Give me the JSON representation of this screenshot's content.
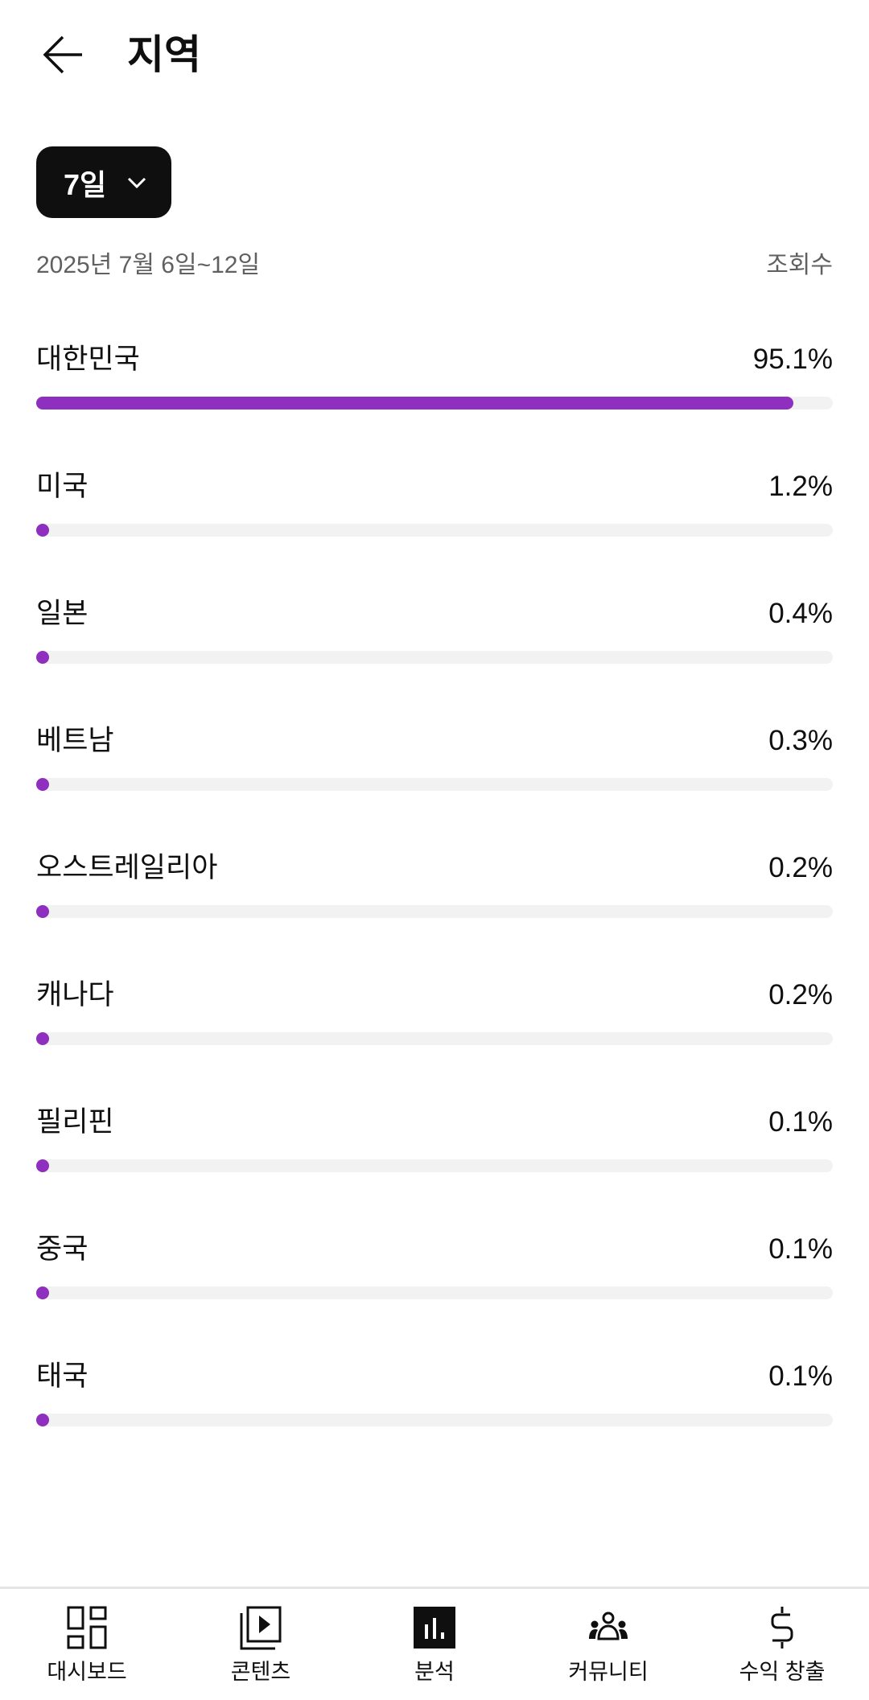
{
  "header": {
    "title": "지역",
    "back_icon": "arrow-left-icon"
  },
  "filter": {
    "period": "7일",
    "icon": "chevron-down-icon"
  },
  "date_range": "2025년 7월 6일~12일",
  "metric_label": "조회수",
  "accent_color": "#8e2fbf",
  "regions": [
    {
      "name": "대한민국",
      "percent_label": "95.1%",
      "value": 95.1
    },
    {
      "name": "미국",
      "percent_label": "1.2%",
      "value": 1.2
    },
    {
      "name": "일본",
      "percent_label": "0.4%",
      "value": 0.4
    },
    {
      "name": "베트남",
      "percent_label": "0.3%",
      "value": 0.3
    },
    {
      "name": "오스트레일리아",
      "percent_label": "0.2%",
      "value": 0.2
    },
    {
      "name": "캐나다",
      "percent_label": "0.2%",
      "value": 0.2
    },
    {
      "name": "필리핀",
      "percent_label": "0.1%",
      "value": 0.1
    },
    {
      "name": "중국",
      "percent_label": "0.1%",
      "value": 0.1
    },
    {
      "name": "태국",
      "percent_label": "0.1%",
      "value": 0.1
    }
  ],
  "nav": [
    {
      "label": "대시보드",
      "icon": "dashboard-icon"
    },
    {
      "label": "콘텐츠",
      "icon": "content-icon"
    },
    {
      "label": "분석",
      "icon": "analytics-icon",
      "active": true
    },
    {
      "label": "커뮤니티",
      "icon": "community-icon"
    },
    {
      "label": "수익 창출",
      "icon": "dollar-icon"
    }
  ]
}
